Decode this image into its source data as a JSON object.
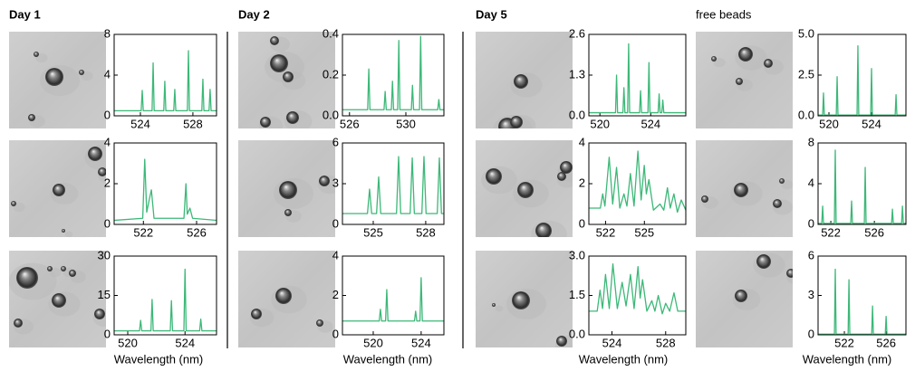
{
  "columns": [
    {
      "title": "Day 1",
      "xlabel": "Wavelength (nm)"
    },
    {
      "title": "Day 2",
      "xlabel": "Wavelength (nm)"
    },
    {
      "title": "Day 5",
      "xlabel": "Wavelength (nm)"
    },
    {
      "title": "free beads",
      "xlabel": "Wavelength (nm)"
    }
  ],
  "chart_data": [
    {
      "type": "line",
      "color": "#3cb878",
      "xlim": [
        522,
        529.8
      ],
      "ylim": [
        0,
        8
      ],
      "xticks": [
        524,
        528
      ],
      "yticks": [
        0,
        4,
        8
      ],
      "x": [
        522,
        524.06,
        524.14,
        524.22,
        524.89,
        524.97,
        525.05,
        525.78,
        525.86,
        525.94,
        526.54,
        526.62,
        526.7,
        527.58,
        527.66,
        527.74,
        528.68,
        528.76,
        528.84,
        529.23,
        529.31,
        529.39,
        529.8
      ],
      "values": [
        0.5,
        0.5,
        2.5,
        0.5,
        0.5,
        5.2,
        0.5,
        0.5,
        3.4,
        0.5,
        0.5,
        2.6,
        0.5,
        0.5,
        6.4,
        0.5,
        0.5,
        3.6,
        0.5,
        0.5,
        2.6,
        0.5,
        0.5
      ]
    },
    {
      "type": "line",
      "color": "#3cb878",
      "xlim": [
        519.8,
        527.5
      ],
      "ylim": [
        0,
        4
      ],
      "xticks": [
        522,
        526
      ],
      "yticks": [
        0,
        2,
        4
      ],
      "x": [
        519.8,
        521.95,
        522.1,
        522.25,
        522.5,
        522.6,
        522.8,
        525.05,
        525.2,
        525.3,
        525.5,
        525.7,
        527.5
      ],
      "values": [
        0.2,
        0.3,
        3.2,
        0.6,
        1.4,
        1.7,
        0.3,
        0.3,
        2.0,
        0.5,
        0.8,
        0.3,
        0.2
      ]
    },
    {
      "type": "line",
      "color": "#3cb878",
      "xlim": [
        519.05,
        526.2
      ],
      "ylim": [
        0,
        30
      ],
      "xticks": [
        520,
        524
      ],
      "yticks": [
        0,
        15,
        30
      ],
      "x": [
        519.05,
        520.82,
        520.9,
        520.98,
        521.62,
        521.7,
        521.78,
        522.97,
        523.05,
        523.13,
        523.92,
        524,
        524.08,
        525.02,
        525.1,
        525.18,
        526.2
      ],
      "values": [
        1.5,
        1.5,
        5.5,
        1.5,
        1.5,
        13.5,
        1.5,
        1.5,
        13,
        1.5,
        1.5,
        25,
        1.5,
        1.5,
        6,
        1.5,
        1.5
      ]
    },
    {
      "type": "line",
      "color": "#3cb878",
      "xlim": [
        525.5,
        532.7
      ],
      "ylim": [
        0,
        0.4
      ],
      "xticks": [
        526,
        530
      ],
      "yticks": [
        {
          "value": 0,
          "label": "0.0"
        },
        0.2,
        0.4
      ],
      "x": [
        525.5,
        527.29,
        527.37,
        527.45,
        528.45,
        528.53,
        528.61,
        528.97,
        529.05,
        529.13,
        529.42,
        529.5,
        529.58,
        530.39,
        530.47,
        530.55,
        530.97,
        531.05,
        531.13,
        532.26,
        532.34,
        532.42,
        532.7
      ],
      "values": [
        0.03,
        0.03,
        0.23,
        0.03,
        0.03,
        0.12,
        0.03,
        0.03,
        0.17,
        0.03,
        0.03,
        0.37,
        0.03,
        0.03,
        0.15,
        0.03,
        0.03,
        0.39,
        0.03,
        0.03,
        0.08,
        0.03,
        0.03
      ]
    },
    {
      "type": "line",
      "color": "#3cb878",
      "xlim": [
        523.24,
        529.04
      ],
      "ylim": [
        0,
        6
      ],
      "xticks": [
        525,
        528
      ],
      "yticks": [
        0,
        3,
        6
      ],
      "x": [
        523.24,
        524.67,
        524.79,
        524.91,
        525.19,
        525.31,
        525.43,
        526.33,
        526.45,
        526.57,
        527.11,
        527.23,
        527.35,
        527.78,
        527.9,
        528.02,
        528.66,
        528.78,
        528.9,
        529.04
      ],
      "values": [
        0.8,
        0.8,
        2.6,
        0.8,
        0.8,
        3.5,
        0.8,
        0.8,
        5.0,
        0.8,
        0.8,
        4.9,
        0.8,
        0.8,
        5.0,
        0.8,
        0.8,
        4.9,
        0.8,
        0.8
      ]
    },
    {
      "type": "line",
      "color": "#3cb878",
      "xlim": [
        517.43,
        525.9
      ],
      "ylim": [
        0,
        4
      ],
      "xticks": [
        520,
        524
      ],
      "yticks": [
        0,
        2,
        4
      ],
      "x": [
        517.43,
        520.5,
        520.6,
        520.7,
        521.03,
        521.13,
        521.23,
        523.44,
        523.54,
        523.64,
        523.9,
        524,
        524.1,
        525.9
      ],
      "values": [
        0.7,
        0.7,
        1.3,
        0.7,
        0.7,
        2.3,
        0.7,
        0.7,
        1.2,
        0.7,
        0.7,
        2.9,
        0.7,
        0.7
      ]
    },
    {
      "type": "line",
      "color": "#3cb878",
      "xlim": [
        519.13,
        526.76
      ],
      "ylim": [
        0,
        2.6
      ],
      "xticks": [
        520,
        524
      ],
      "yticks": [
        {
          "value": 0,
          "label": "0.0"
        },
        1.3,
        2.6
      ],
      "x": [
        519.13,
        521.23,
        521.31,
        521.39,
        521.81,
        521.89,
        521.97,
        522.18,
        522.26,
        522.34,
        523.12,
        523.2,
        523.28,
        523.78,
        523.86,
        523.94,
        524.58,
        524.66,
        524.74,
        524.87,
        524.95,
        525.03,
        526.76
      ],
      "values": [
        0.1,
        0.1,
        1.3,
        0.1,
        0.1,
        0.9,
        0.1,
        0.1,
        2.3,
        0.1,
        0.1,
        0.8,
        0.1,
        0.1,
        1.7,
        0.1,
        0.1,
        0.7,
        0.1,
        0.1,
        0.5,
        0.1,
        0.1
      ]
    },
    {
      "type": "line",
      "color": "#3cb878",
      "xlim": [
        520.71,
        528.2
      ],
      "ylim": [
        0,
        4
      ],
      "xticks": [
        522,
        525
      ],
      "yticks": [
        0,
        2,
        4
      ],
      "x": [
        520.71,
        521.6,
        521.78,
        521.95,
        522.28,
        522.55,
        522.85,
        523.1,
        523.42,
        523.65,
        523.92,
        524.2,
        524.5,
        524.75,
        524.99,
        525.15,
        525.35,
        525.7,
        526.21,
        526.5,
        526.78,
        527.0,
        527.28,
        527.55,
        527.85,
        528.2
      ],
      "values": [
        0.8,
        0.8,
        1.5,
        0.9,
        3.3,
        1.0,
        2.8,
        0.8,
        1.5,
        0.9,
        2.5,
        0.9,
        3.6,
        1.2,
        2.9,
        1.5,
        2.2,
        0.7,
        1.0,
        0.7,
        1.8,
        0.8,
        1.5,
        0.6,
        1.2,
        0.7
      ]
    },
    {
      "type": "line",
      "color": "#3cb878",
      "xlim": [
        522.28,
        529.5
      ],
      "ylim": [
        0,
        3
      ],
      "xticks": [
        524,
        528
      ],
      "yticks": [
        {
          "value": 0,
          "label": "0.0"
        },
        1.5,
        {
          "value": 3,
          "label": "3.0"
        }
      ],
      "x": [
        522.28,
        522.9,
        523.11,
        523.3,
        523.52,
        523.8,
        524.07,
        524.4,
        524.76,
        525.05,
        525.38,
        525.65,
        525.94,
        526.1,
        526.28,
        526.6,
        526.97,
        527.2,
        527.45,
        527.75,
        528.0,
        528.3,
        528.62,
        528.9,
        529.5
      ],
      "values": [
        0.9,
        0.9,
        1.7,
        1.0,
        2.3,
        1.0,
        2.7,
        1.0,
        2.0,
        1.1,
        2.3,
        1.0,
        2.6,
        1.4,
        2.1,
        0.9,
        1.3,
        0.9,
        1.5,
        0.8,
        1.2,
        0.9,
        1.6,
        0.9,
        0.9
      ]
    },
    {
      "type": "line",
      "color": "#3cb878",
      "xlim": [
        518.98,
        527.23
      ],
      "ylim": [
        0,
        5
      ],
      "xticks": [
        520,
        524
      ],
      "yticks": [
        {
          "value": 0,
          "label": "0.0"
        },
        2.5,
        {
          "value": 5,
          "label": "5.0"
        }
      ],
      "x": [
        518.98,
        519.41,
        519.49,
        519.57,
        520.69,
        520.77,
        520.85,
        522.64,
        522.72,
        522.8,
        523.92,
        524,
        524.08,
        526.22,
        526.3,
        526.38,
        527.23
      ],
      "values": [
        0.05,
        0.05,
        1.4,
        0.05,
        0.05,
        2.4,
        0.05,
        0.05,
        4.3,
        0.05,
        0.05,
        2.9,
        0.05,
        0.05,
        1.3,
        0.05,
        0.05
      ]
    },
    {
      "type": "line",
      "color": "#3cb878",
      "xlim": [
        520.83,
        528.9
      ],
      "ylim": [
        0,
        8
      ],
      "xticks": [
        522,
        526
      ],
      "yticks": [
        0,
        4,
        8
      ],
      "x": [
        520.83,
        521.17,
        521.25,
        521.33,
        522.33,
        522.41,
        522.49,
        523.83,
        523.91,
        523.99,
        525.08,
        525.16,
        525.24,
        527.58,
        527.66,
        527.74,
        528.5,
        528.58,
        528.66,
        528.9
      ],
      "values": [
        0.1,
        0.1,
        1.8,
        0.1,
        0.1,
        7.3,
        0.1,
        0.1,
        2.3,
        0.1,
        0.1,
        5.6,
        0.1,
        0.1,
        1.5,
        0.1,
        0.1,
        1.8,
        0.1,
        0.1
      ]
    },
    {
      "type": "line",
      "color": "#3cb878",
      "xlim": [
        519.48,
        527.9
      ],
      "ylim": [
        0,
        6
      ],
      "xticks": [
        522,
        526
      ],
      "yticks": [
        0,
        3,
        6
      ],
      "x": [
        519.48,
        521.05,
        521.13,
        521.21,
        522.36,
        522.44,
        522.52,
        524.62,
        524.7,
        524.78,
        525.92,
        526,
        526.08,
        527.9
      ],
      "values": [
        0.05,
        0.05,
        5.0,
        0.05,
        0.05,
        4.2,
        0.05,
        0.05,
        2.2,
        0.05,
        0.05,
        1.4,
        0.05,
        0.05
      ]
    }
  ]
}
